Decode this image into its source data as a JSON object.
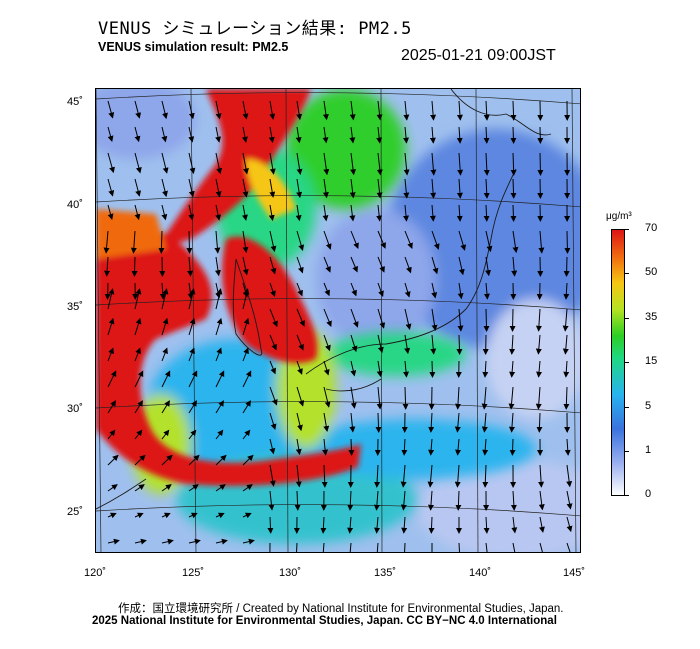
{
  "header": {
    "title_jp": "VENUS シミュレーション結果: PM2.5",
    "title_en": "VENUS simulation result: PM2.5",
    "timestamp": "2025-01-21 09:00JST"
  },
  "map": {
    "lat_labels": [
      "45˚",
      "40˚",
      "35˚",
      "30˚",
      "25˚"
    ],
    "lon_labels": [
      "120˚",
      "125˚",
      "130˚",
      "135˚",
      "140˚",
      "145˚"
    ],
    "ocean_color": "#9fc0ee",
    "plume_color": "#dd1515"
  },
  "colorbar": {
    "unit": "μg/m³",
    "ticks": [
      "70",
      "50",
      "35",
      "15",
      "5",
      "1",
      "0"
    ],
    "colors": [
      "#dd1515",
      "#f06a10",
      "#f6c614",
      "#b5e322",
      "#2ccf24",
      "#20d880",
      "#28b4ee",
      "#3a72de",
      "#9ab0ef",
      "#ffffff"
    ]
  },
  "footer": {
    "credit_line1": "作成：国立環境研究所 / Created by National Institute for Environmental Studies, Japan.",
    "credit_line2": "2025 National Institute for Environmental Studies, Japan. CC BY−NC 4.0 International"
  }
}
